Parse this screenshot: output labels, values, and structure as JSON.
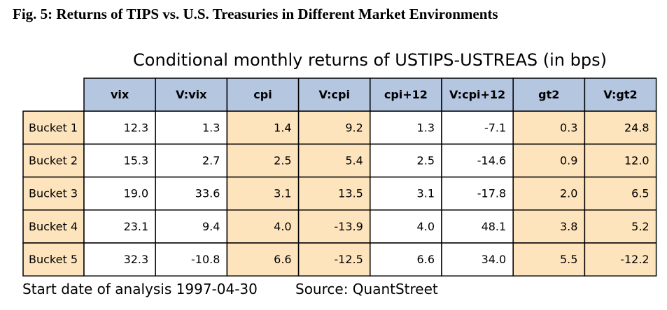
{
  "figure_title": "Fig. 5: Returns of TIPS vs. U.S. Treasuries in Different Market Environments",
  "chart_data": {
    "type": "table",
    "title": "Conditional monthly returns of USTIPS-USTREAS (in bps)",
    "columns": [
      "vix",
      "V:vix",
      "cpi",
      "V:cpi",
      "cpi+12",
      "V:cpi+12",
      "gt2",
      "V:gt2"
    ],
    "rows": [
      {
        "label": "Bucket 1",
        "values": [
          "12.3",
          "1.3",
          "1.4",
          "9.2",
          "1.3",
          "-7.1",
          "0.3",
          "24.8"
        ]
      },
      {
        "label": "Bucket 2",
        "values": [
          "15.3",
          "2.7",
          "2.5",
          "5.4",
          "2.5",
          "-14.6",
          "0.9",
          "12.0"
        ]
      },
      {
        "label": "Bucket 3",
        "values": [
          "19.0",
          "33.6",
          "3.1",
          "13.5",
          "3.1",
          "-17.8",
          "2.0",
          "6.5"
        ]
      },
      {
        "label": "Bucket 4",
        "values": [
          "23.1",
          "9.4",
          "4.0",
          "-13.9",
          "4.0",
          "48.1",
          "3.8",
          "5.2"
        ]
      },
      {
        "label": "Bucket 5",
        "values": [
          "32.3",
          "-10.8",
          "6.6",
          "-12.5",
          "6.6",
          "34.0",
          "5.5",
          "-12.2"
        ]
      }
    ],
    "highlighted_columns": [
      "cpi",
      "V:cpi",
      "gt2",
      "V:gt2"
    ],
    "colors": {
      "header_bg": "#b4c6e0",
      "highlight_bg": "#fde4bd",
      "row_label_bg": "#fde4bd",
      "plain_bg": "#ffffff",
      "border": "#000000"
    }
  },
  "footer": {
    "start_date": "Start date of analysis 1997-04-30",
    "source": "Source: QuantStreet"
  }
}
